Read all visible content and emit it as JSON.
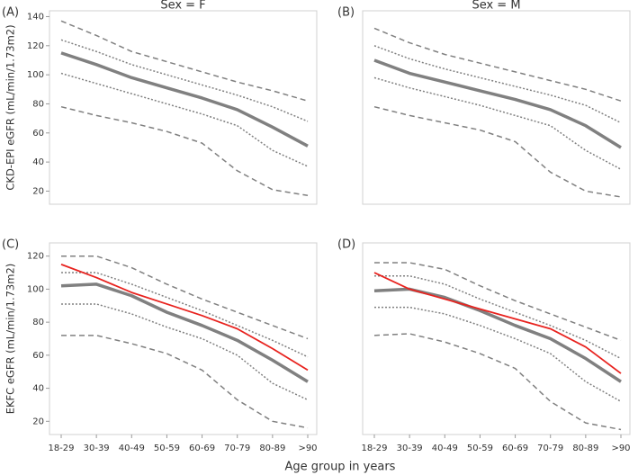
{
  "chart_data": [
    {
      "type": "line",
      "panel_label": "(A)",
      "title": "Sex = F",
      "y_label": "CKD-EPI eGFR (mL/min/1.73m2)",
      "ylim": [
        11,
        144
      ],
      "yticks": [
        20,
        40,
        60,
        80,
        100,
        120,
        140
      ],
      "series": [
        {
          "color": "#808080",
          "style": "dashed",
          "width": 1.5,
          "values": [
            137,
            127,
            116,
            109,
            102,
            95,
            89,
            82
          ]
        },
        {
          "color": "#808080",
          "style": "dotted",
          "width": 1.5,
          "values": [
            124,
            116,
            107,
            100,
            93,
            86,
            78,
            68
          ]
        },
        {
          "color": "#808080",
          "style": "solid",
          "width": 3.5,
          "values": [
            115,
            107,
            98,
            91,
            84,
            76,
            64,
            51
          ]
        },
        {
          "color": "#808080",
          "style": "dotted",
          "width": 1.5,
          "values": [
            101,
            94,
            87,
            80,
            73,
            65,
            48,
            37
          ]
        },
        {
          "color": "#808080",
          "style": "dashed",
          "width": 1.5,
          "values": [
            78,
            72,
            67,
            61,
            53,
            34,
            21,
            17
          ]
        }
      ]
    },
    {
      "type": "line",
      "panel_label": "(B)",
      "title": "Sex = M",
      "ylim": [
        11,
        144
      ],
      "series": [
        {
          "color": "#808080",
          "style": "dashed",
          "width": 1.5,
          "values": [
            132,
            122,
            114,
            108,
            102,
            96,
            90,
            82
          ]
        },
        {
          "color": "#808080",
          "style": "dotted",
          "width": 1.5,
          "values": [
            120,
            111,
            104,
            98,
            92,
            86,
            79,
            67
          ]
        },
        {
          "color": "#808080",
          "style": "solid",
          "width": 3.5,
          "values": [
            110,
            101,
            95,
            89,
            83,
            76,
            65,
            50
          ]
        },
        {
          "color": "#808080",
          "style": "dotted",
          "width": 1.5,
          "values": [
            98,
            91,
            85,
            79,
            72,
            65,
            48,
            35
          ]
        },
        {
          "color": "#808080",
          "style": "dashed",
          "width": 1.5,
          "values": [
            78,
            72,
            67,
            62,
            54,
            33,
            20,
            16
          ]
        }
      ]
    },
    {
      "type": "line",
      "panel_label": "(C)",
      "y_label": "EKFC eGFR (mL/min/1.73m2)",
      "x_label": "Age group in years",
      "categories": [
        "18-29",
        "30-39",
        "40-49",
        "50-59",
        "60-69",
        "70-79",
        "80-89",
        ">90"
      ],
      "ylim": [
        12,
        128
      ],
      "yticks": [
        20,
        40,
        60,
        80,
        100,
        120
      ],
      "series": [
        {
          "color": "#808080",
          "style": "dashed",
          "width": 1.5,
          "values": [
            120,
            120,
            113,
            103,
            94,
            86,
            78,
            70
          ]
        },
        {
          "color": "#808080",
          "style": "dotted",
          "width": 1.5,
          "values": [
            110,
            110,
            103,
            95,
            87,
            78,
            69,
            59
          ]
        },
        {
          "color": "#808080",
          "style": "solid",
          "width": 3.5,
          "values": [
            102,
            103,
            96,
            86,
            78,
            69,
            57,
            44
          ]
        },
        {
          "color": "#808080",
          "style": "dotted",
          "width": 1.5,
          "values": [
            91,
            91,
            85,
            77,
            70,
            60,
            43,
            33
          ]
        },
        {
          "color": "#808080",
          "style": "dashed",
          "width": 1.5,
          "values": [
            72,
            72,
            67,
            61,
            51,
            33,
            20,
            16
          ]
        },
        {
          "color": "#e8231f",
          "style": "solid",
          "width": 1.8,
          "values": [
            115,
            107,
            98,
            91,
            84,
            76,
            64,
            51
          ]
        }
      ]
    },
    {
      "type": "line",
      "panel_label": "(D)",
      "categories": [
        "18-29",
        "30-39",
        "40-49",
        "50-59",
        "60-69",
        "70-79",
        "80-89",
        ">90"
      ],
      "ylim": [
        12,
        128
      ],
      "series": [
        {
          "color": "#808080",
          "style": "dashed",
          "width": 1.5,
          "values": [
            116,
            116,
            112,
            102,
            93,
            85,
            77,
            69
          ]
        },
        {
          "color": "#808080",
          "style": "dotted",
          "width": 1.5,
          "values": [
            108,
            108,
            103,
            94,
            86,
            78,
            69,
            58
          ]
        },
        {
          "color": "#808080",
          "style": "solid",
          "width": 3.5,
          "values": [
            99,
            100,
            95,
            87,
            78,
            70,
            58,
            44
          ]
        },
        {
          "color": "#808080",
          "style": "dotted",
          "width": 1.5,
          "values": [
            89,
            89,
            85,
            78,
            70,
            61,
            44,
            32
          ]
        },
        {
          "color": "#808080",
          "style": "dashed",
          "width": 1.5,
          "values": [
            72,
            73,
            68,
            61,
            52,
            32,
            19,
            15
          ]
        },
        {
          "color": "#e8231f",
          "style": "solid",
          "width": 1.8,
          "values": [
            110,
            100,
            94,
            88,
            82,
            76,
            65,
            49
          ]
        }
      ]
    }
  ]
}
